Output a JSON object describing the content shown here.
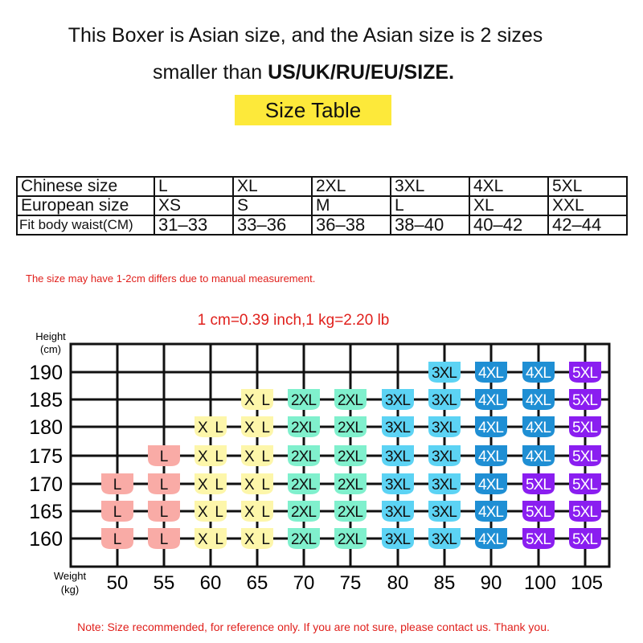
{
  "header": {
    "line1": "This Boxer is Asian size, and the Asian size is 2 sizes",
    "line2_prefix": "smaller than ",
    "line2_bold": "US/UK/RU/EU/SIZE.",
    "table_title": "Size Table"
  },
  "size_table": {
    "rows": [
      {
        "label": "Chinese size",
        "values": [
          "L",
          "XL",
          "2XL",
          "3XL",
          "4XL",
          "5XL"
        ]
      },
      {
        "label": "European size",
        "values": [
          "XS",
          "S",
          "M",
          "L",
          "XL",
          "XXL"
        ]
      },
      {
        "label": "Fit body waist(CM)",
        "values": [
          "31–33",
          "33–36",
          "36–38",
          "38–40",
          "40–42",
          "42–44"
        ]
      }
    ]
  },
  "notes": {
    "measurement": "The size may have 1-2cm differs due to manual measurement.",
    "conversion": "1 cm=0.39 inch,1 kg=2.20 lb",
    "footer": "Note: Size recommended, for reference only. If you are not sure, please contact us. Thank you."
  },
  "chart_data": {
    "type": "heatmap",
    "ylabel": [
      "Height",
      "(cm)"
    ],
    "xlabel": [
      "Weight",
      "(kg)"
    ],
    "x": [
      "50",
      "55",
      "60",
      "65",
      "70",
      "75",
      "80",
      "85",
      "90",
      "100",
      "105"
    ],
    "y": [
      "190",
      "185",
      "180",
      "175",
      "170",
      "165",
      "160"
    ],
    "grid": true,
    "size_colors": {
      "L": "#f9aba6",
      "XL": "#fdf6aa",
      "2XL": "#80f0cd",
      "3XL": "#5cd3f4",
      "4XL": "#1f8fd4",
      "5XL": "#8a1ef0"
    },
    "cells": [
      [
        "",
        "",
        "",
        "",
        "",
        "",
        "",
        "3XL",
        "4XL",
        "4XL",
        "5XL"
      ],
      [
        "",
        "",
        "",
        "XL",
        "2XL",
        "2XL",
        "3XL",
        "3XL",
        "4XL",
        "4XL",
        "5XL"
      ],
      [
        "",
        "",
        "XL",
        "XL",
        "2XL",
        "2XL",
        "3XL",
        "3XL",
        "4XL",
        "4XL",
        "5XL"
      ],
      [
        "",
        "L",
        "XL",
        "XL",
        "2XL",
        "2XL",
        "3XL",
        "3XL",
        "4XL",
        "4XL",
        "5XL"
      ],
      [
        "L",
        "L",
        "XL",
        "XL",
        "2XL",
        "2XL",
        "3XL",
        "3XL",
        "4XL",
        "5XL",
        "5XL"
      ],
      [
        "L",
        "L",
        "XL",
        "XL",
        "2XL",
        "2XL",
        "3XL",
        "3XL",
        "4XL",
        "5XL",
        "5XL"
      ],
      [
        "L",
        "L",
        "XL",
        "XL",
        "2XL",
        "2XL",
        "3XL",
        "3XL",
        "4XL",
        "5XL",
        "5XL"
      ]
    ]
  }
}
